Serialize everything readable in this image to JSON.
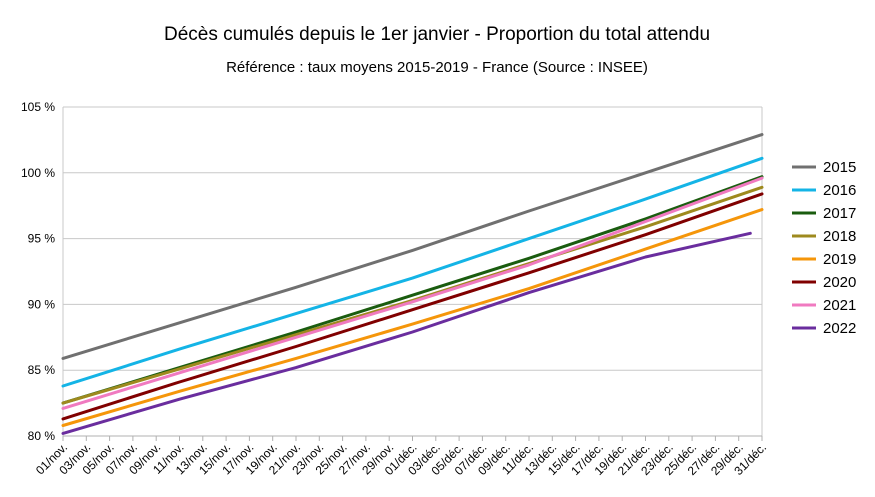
{
  "chart_data": {
    "type": "line",
    "title": "Décès cumulés depuis le 1er janvier - Proportion du total attendu",
    "subtitle": "Référence : taux moyens 2015-2019 - France  (Source : INSEE)",
    "xlabel": "",
    "ylabel": "",
    "ylim": [
      80,
      105
    ],
    "y_ticks": [
      80,
      85,
      90,
      95,
      100,
      105
    ],
    "y_tick_labels": [
      "80 %",
      "85 %",
      "90 %",
      "95 %",
      "100 %",
      "105 %"
    ],
    "x_tick_labels": [
      "01/nov.",
      "03/nov.",
      "05/nov.",
      "07/nov.",
      "09/nov.",
      "11/nov.",
      "13/nov.",
      "15/nov.",
      "17/nov.",
      "19/nov.",
      "21/nov.",
      "23/nov.",
      "25/nov.",
      "27/nov.",
      "29/nov.",
      "01/déc.",
      "03/déc.",
      "05/déc.",
      "07/déc.",
      "09/déc.",
      "11/déc.",
      "13/déc.",
      "15/déc.",
      "17/déc.",
      "19/déc.",
      "21/déc.",
      "23/déc.",
      "25/déc.",
      "27/déc.",
      "29/déc.",
      "31/déc."
    ],
    "grid": "horizontal",
    "legend_position": "right",
    "series": [
      {
        "name": "2015",
        "color": "#707070",
        "x": [
          "01/nov.",
          "11/nov.",
          "21/nov.",
          "01/déc.",
          "11/déc.",
          "21/déc.",
          "31/déc."
        ],
        "values": [
          85.9,
          88.6,
          91.3,
          94.1,
          97.1,
          100.0,
          102.9
        ]
      },
      {
        "name": "2016",
        "color": "#14b4e6",
        "x": [
          "01/nov.",
          "11/nov.",
          "21/nov.",
          "01/déc.",
          "11/déc.",
          "21/déc.",
          "31/déc."
        ],
        "values": [
          83.8,
          86.6,
          89.3,
          92.0,
          95.0,
          98.0,
          101.1
        ]
      },
      {
        "name": "2017",
        "color": "#1a5c0f",
        "x": [
          "01/nov.",
          "11/nov.",
          "21/nov.",
          "01/déc.",
          "11/déc.",
          "21/déc.",
          "31/déc."
        ],
        "values": [
          82.5,
          85.2,
          87.9,
          90.7,
          93.5,
          96.5,
          99.7
        ]
      },
      {
        "name": "2018",
        "color": "#9e8a1e",
        "x": [
          "01/nov.",
          "11/nov.",
          "21/nov.",
          "01/déc.",
          "11/déc.",
          "21/déc.",
          "31/déc."
        ],
        "values": [
          82.5,
          85.1,
          87.7,
          90.3,
          93.1,
          95.9,
          98.9
        ]
      },
      {
        "name": "2019",
        "color": "#f5960a",
        "x": [
          "01/nov.",
          "11/nov.",
          "21/nov.",
          "01/déc.",
          "11/déc.",
          "21/déc.",
          "31/déc."
        ],
        "values": [
          80.8,
          83.4,
          85.9,
          88.5,
          91.2,
          94.2,
          97.2
        ]
      },
      {
        "name": "2020",
        "color": "#800000",
        "x": [
          "01/nov.",
          "11/nov.",
          "21/nov.",
          "01/déc.",
          "11/déc.",
          "21/déc.",
          "31/déc."
        ],
        "values": [
          81.3,
          84.1,
          86.8,
          89.6,
          92.4,
          95.3,
          98.4
        ]
      },
      {
        "name": "2021",
        "color": "#f07ac0",
        "x": [
          "01/nov.",
          "11/nov.",
          "21/nov.",
          "01/déc.",
          "11/déc.",
          "21/déc.",
          "31/déc."
        ],
        "values": [
          82.1,
          84.8,
          87.5,
          90.2,
          93.0,
          96.3,
          99.6
        ]
      },
      {
        "name": "2022",
        "color": "#6a2d9e",
        "x": [
          "01/nov.",
          "11/nov.",
          "21/nov.",
          "01/déc.",
          "11/déc.",
          "21/déc.",
          "30/déc."
        ],
        "values": [
          80.2,
          82.8,
          85.2,
          87.9,
          90.9,
          93.6,
          95.4
        ]
      }
    ]
  }
}
